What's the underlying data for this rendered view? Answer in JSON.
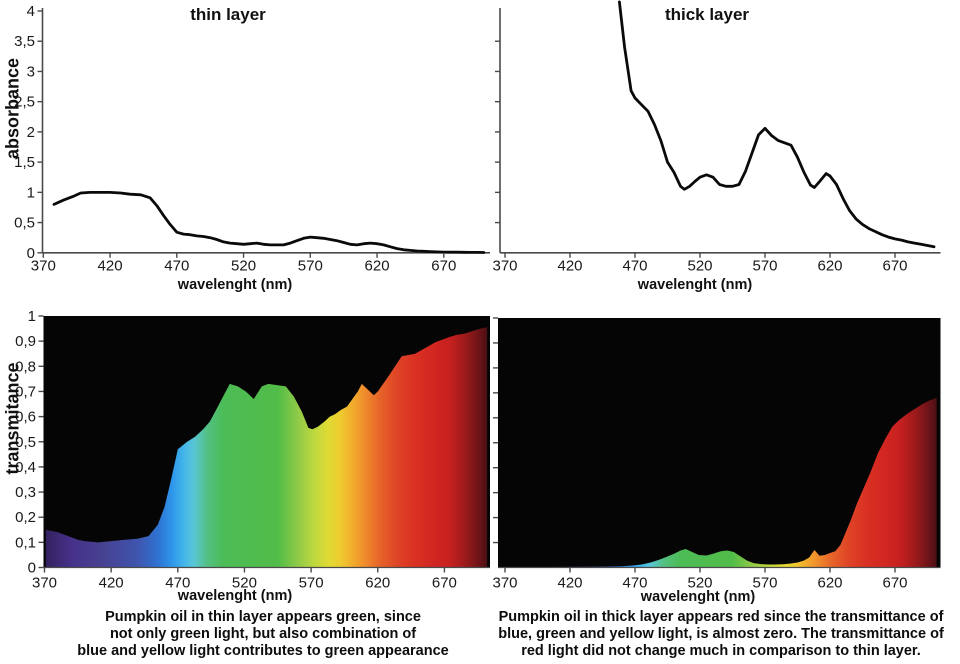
{
  "colors": {
    "background": "#ffffff",
    "curve": "#0a0a0a",
    "axis": "#4a4a4a",
    "plot_bg": "#050505",
    "text": "#111111"
  },
  "captions": {
    "thin": [
      "Pumpkin oil in thin layer appears green, since",
      "not only green light, but also combination of",
      "blue and yellow light contributes to green appearance"
    ],
    "thick": [
      "Pumpkin oil in thick layer appears red since the transmittance of",
      "blue, green and yellow light, is almost zero. The transmittance of",
      "red light did not change much in comparison to thin layer."
    ]
  },
  "spectrum_stops": [
    {
      "nm": 370,
      "color": "#33205c"
    },
    {
      "nm": 390,
      "color": "#46318a"
    },
    {
      "nm": 415,
      "color": "#474292"
    },
    {
      "nm": 440,
      "color": "#3f55ae"
    },
    {
      "nm": 455,
      "color": "#2f72d2"
    },
    {
      "nm": 466,
      "color": "#2f97ea"
    },
    {
      "nm": 474,
      "color": "#41b4ea"
    },
    {
      "nm": 482,
      "color": "#59c6d6"
    },
    {
      "nm": 492,
      "color": "#53c083"
    },
    {
      "nm": 505,
      "color": "#4cbc55"
    },
    {
      "nm": 545,
      "color": "#52bc49"
    },
    {
      "nm": 560,
      "color": "#8fca47"
    },
    {
      "nm": 572,
      "color": "#bcd83f"
    },
    {
      "nm": 583,
      "color": "#e0da34"
    },
    {
      "nm": 592,
      "color": "#eecb2f"
    },
    {
      "nm": 602,
      "color": "#f2a92d"
    },
    {
      "nm": 612,
      "color": "#ee862c"
    },
    {
      "nm": 622,
      "color": "#e66229"
    },
    {
      "nm": 634,
      "color": "#df4526"
    },
    {
      "nm": 648,
      "color": "#d93023"
    },
    {
      "nm": 662,
      "color": "#d22621"
    },
    {
      "nm": 674,
      "color": "#c62020"
    },
    {
      "nm": 684,
      "color": "#a31b1b"
    },
    {
      "nm": 694,
      "color": "#76151a"
    },
    {
      "nm": 705,
      "color": "#3a0d12"
    }
  ],
  "chart_data": [
    {
      "id": "absorbance-thin",
      "type": "line",
      "title": "thin layer",
      "xlabel": "wavelenght (nm)",
      "ylabel": "absorbance",
      "xlim": [
        370,
        705
      ],
      "ylim": [
        0,
        4
      ],
      "xticks": [
        370,
        420,
        470,
        520,
        570,
        620,
        670
      ],
      "yticks": [
        0,
        0.5,
        1,
        1.5,
        2,
        2.5,
        3,
        3.5,
        4
      ],
      "ytick_labels": [
        "0",
        "0,5",
        "1",
        "1,5",
        "2",
        "2,5",
        "3",
        "3,5",
        "4"
      ],
      "ytick_labels_visible": true,
      "line_color": "#0a0a0a",
      "x": [
        378,
        385,
        392,
        398,
        405,
        412,
        420,
        428,
        435,
        443,
        450,
        455,
        460,
        465,
        470,
        475,
        480,
        485,
        490,
        495,
        500,
        505,
        510,
        515,
        520,
        525,
        530,
        535,
        540,
        545,
        550,
        555,
        560,
        565,
        570,
        575,
        580,
        585,
        590,
        595,
        600,
        605,
        610,
        615,
        620,
        625,
        630,
        635,
        640,
        645,
        650,
        655,
        660,
        665,
        670,
        675,
        680,
        685,
        690,
        695,
        700
      ],
      "y": [
        0.8,
        0.87,
        0.93,
        0.99,
        1.0,
        1.0,
        1.0,
        0.99,
        0.97,
        0.96,
        0.91,
        0.78,
        0.62,
        0.47,
        0.34,
        0.31,
        0.3,
        0.28,
        0.27,
        0.25,
        0.22,
        0.18,
        0.16,
        0.15,
        0.14,
        0.15,
        0.16,
        0.14,
        0.13,
        0.13,
        0.13,
        0.16,
        0.2,
        0.24,
        0.26,
        0.25,
        0.24,
        0.22,
        0.2,
        0.17,
        0.14,
        0.13,
        0.15,
        0.16,
        0.15,
        0.13,
        0.1,
        0.07,
        0.05,
        0.04,
        0.03,
        0.025,
        0.02,
        0.015,
        0.012,
        0.01,
        0.01,
        0.008,
        0.007,
        0.006,
        0.005
      ]
    },
    {
      "id": "absorbance-thick",
      "type": "line",
      "title": "thick layer",
      "xlabel": "wavelenght (nm)",
      "ylabel": "",
      "xlim": [
        370,
        705
      ],
      "ylim": [
        0,
        4
      ],
      "xticks": [
        370,
        420,
        470,
        520,
        570,
        620,
        670
      ],
      "yticks": [
        0.5,
        1,
        1.5,
        2,
        2.5,
        3,
        3.5
      ],
      "ytick_labels": [],
      "ytick_labels_visible": false,
      "line_color": "#0a0a0a",
      "x": [
        458,
        462,
        467,
        470,
        475,
        480,
        485,
        490,
        495,
        500,
        505,
        508,
        512,
        516,
        520,
        525,
        530,
        535,
        540,
        545,
        550,
        555,
        560,
        565,
        570,
        575,
        580,
        585,
        590,
        595,
        600,
        605,
        608,
        612,
        617,
        620,
        625,
        630,
        635,
        640,
        645,
        650,
        655,
        660,
        665,
        670,
        675,
        680,
        685,
        690,
        695,
        700
      ],
      "y": [
        4.15,
        3.4,
        2.68,
        2.56,
        2.45,
        2.34,
        2.12,
        1.85,
        1.5,
        1.33,
        1.1,
        1.05,
        1.1,
        1.18,
        1.25,
        1.29,
        1.25,
        1.13,
        1.1,
        1.1,
        1.13,
        1.35,
        1.65,
        1.95,
        2.06,
        1.94,
        1.86,
        1.82,
        1.78,
        1.58,
        1.33,
        1.12,
        1.08,
        1.18,
        1.31,
        1.27,
        1.13,
        0.9,
        0.7,
        0.56,
        0.47,
        0.4,
        0.35,
        0.3,
        0.26,
        0.23,
        0.21,
        0.18,
        0.16,
        0.14,
        0.12,
        0.1
      ]
    },
    {
      "id": "transmittance-thin",
      "type": "area-spectrum",
      "title": "",
      "xlabel": "wavelenght (nm)",
      "ylabel": "transmitance",
      "xlim": [
        370,
        705
      ],
      "ylim": [
        0,
        1
      ],
      "xticks": [
        370,
        420,
        470,
        520,
        570,
        620,
        670
      ],
      "yticks": [
        0,
        0.1,
        0.2,
        0.3,
        0.4,
        0.5,
        0.6,
        0.7,
        0.8,
        0.9,
        1
      ],
      "ytick_labels": [
        "0",
        "0,1",
        "0,2",
        "0,3",
        "0,4",
        "0,5",
        "0,6",
        "0,7",
        "0,8",
        "0,9",
        "1"
      ],
      "ytick_labels_visible": true,
      "x": [
        371,
        380,
        385,
        390,
        395,
        400,
        410,
        420,
        430,
        440,
        448,
        455,
        460,
        465,
        470,
        477,
        483,
        489,
        494,
        499,
        504,
        509,
        515,
        521,
        527,
        533,
        538,
        545,
        551,
        557,
        563,
        568,
        571,
        575,
        580,
        584,
        588,
        592,
        597,
        601,
        605,
        608,
        612,
        617,
        620,
        624,
        628,
        633,
        638,
        643,
        648,
        653,
        658,
        663,
        668,
        673,
        679,
        685,
        691,
        697,
        702
      ],
      "y": [
        0.15,
        0.14,
        0.13,
        0.12,
        0.11,
        0.105,
        0.1,
        0.105,
        0.11,
        0.115,
        0.125,
        0.17,
        0.24,
        0.35,
        0.47,
        0.5,
        0.52,
        0.55,
        0.58,
        0.63,
        0.68,
        0.73,
        0.72,
        0.7,
        0.67,
        0.72,
        0.73,
        0.725,
        0.72,
        0.68,
        0.62,
        0.555,
        0.55,
        0.56,
        0.58,
        0.6,
        0.61,
        0.625,
        0.64,
        0.67,
        0.7,
        0.73,
        0.71,
        0.685,
        0.7,
        0.73,
        0.76,
        0.8,
        0.84,
        0.845,
        0.85,
        0.865,
        0.88,
        0.895,
        0.905,
        0.915,
        0.925,
        0.93,
        0.94,
        0.95,
        0.955
      ]
    },
    {
      "id": "transmittance-thick",
      "type": "area-spectrum",
      "title": "",
      "xlabel": "wavelenght (nm)",
      "ylabel": "",
      "xlim": [
        370,
        705
      ],
      "ylim": [
        0,
        1
      ],
      "xticks": [
        370,
        420,
        470,
        520,
        570,
        620,
        670
      ],
      "yticks": [
        0.1,
        0.2,
        0.3,
        0.4,
        0.5,
        0.6,
        0.7,
        0.8,
        0.9,
        1
      ],
      "ytick_labels": [],
      "ytick_labels_visible": false,
      "x": [
        370,
        400,
        430,
        450,
        460,
        468,
        475,
        482,
        488,
        494,
        500,
        505,
        509,
        514,
        519,
        525,
        530,
        536,
        541,
        546,
        551,
        556,
        561,
        566,
        572,
        578,
        584,
        590,
        595,
        600,
        604,
        608,
        612,
        616,
        620,
        624,
        628,
        632,
        636,
        641,
        646,
        651,
        657,
        663,
        668,
        673,
        679,
        685,
        691,
        697,
        702
      ],
      "y": [
        0.002,
        0.002,
        0.003,
        0.004,
        0.005,
        0.008,
        0.012,
        0.02,
        0.03,
        0.042,
        0.055,
        0.068,
        0.074,
        0.062,
        0.05,
        0.048,
        0.055,
        0.065,
        0.068,
        0.062,
        0.045,
        0.028,
        0.018,
        0.014,
        0.012,
        0.012,
        0.013,
        0.016,
        0.02,
        0.028,
        0.04,
        0.07,
        0.047,
        0.05,
        0.058,
        0.065,
        0.09,
        0.14,
        0.19,
        0.26,
        0.32,
        0.38,
        0.46,
        0.52,
        0.565,
        0.59,
        0.615,
        0.635,
        0.655,
        0.67,
        0.68
      ]
    }
  ]
}
